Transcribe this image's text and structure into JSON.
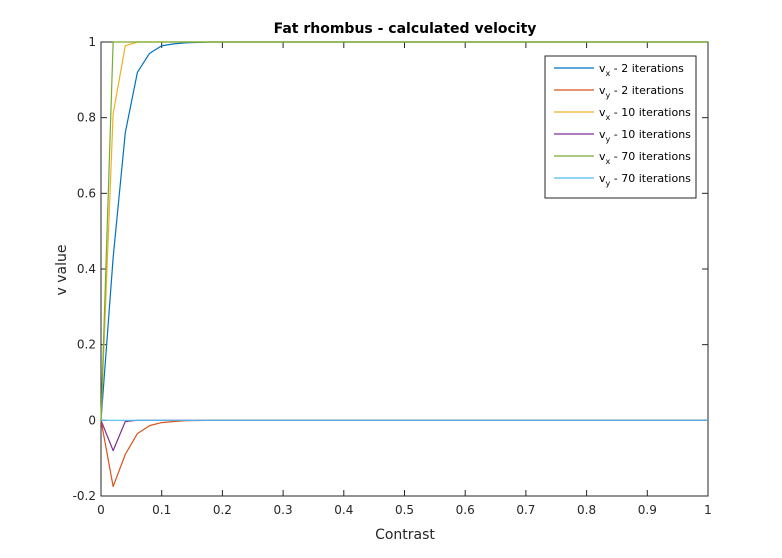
{
  "chart_data": {
    "type": "line",
    "title": "Fat rhombus - calculated velocity",
    "xlabel": "Contrast",
    "ylabel": "v value",
    "xlim": [
      0,
      1
    ],
    "ylim": [
      -0.2,
      1
    ],
    "xticks": [
      "0",
      "0.1",
      "0.2",
      "0.3",
      "0.4",
      "0.5",
      "0.6",
      "0.7",
      "0.8",
      "0.9",
      "1"
    ],
    "yticks": [
      "-0.2",
      "0",
      "0.2",
      "0.4",
      "0.6",
      "0.8",
      "1"
    ],
    "grid": false,
    "legend_position": "top-right",
    "series": [
      {
        "legend": {
          "var": "v",
          "sub": "x",
          "rest": " - 2 iterations"
        },
        "color": "#0072BD",
        "x": [
          0,
          0.02,
          0.04,
          0.06,
          0.08,
          0.1,
          0.12,
          0.14,
          0.16,
          0.18,
          0.2,
          1
        ],
        "y": [
          0,
          0.43,
          0.76,
          0.92,
          0.97,
          0.99,
          0.995,
          0.998,
          0.999,
          1,
          1,
          1
        ]
      },
      {
        "legend": {
          "var": "v",
          "sub": "y",
          "rest": " - 2 iterations"
        },
        "color": "#D95319",
        "x": [
          0,
          0.02,
          0.04,
          0.06,
          0.08,
          0.1,
          0.12,
          0.14,
          0.16,
          0.18,
          0.2,
          1
        ],
        "y": [
          0,
          -0.175,
          -0.09,
          -0.035,
          -0.014,
          -0.006,
          -0.003,
          -0.001,
          -0.0005,
          0,
          0,
          0
        ]
      },
      {
        "legend": {
          "var": "v",
          "sub": "x",
          "rest": " - 10 iterations"
        },
        "color": "#EDB120",
        "x": [
          0,
          0.02,
          0.04,
          0.06,
          0.08,
          1
        ],
        "y": [
          0,
          0.81,
          0.99,
          1,
          1,
          1
        ]
      },
      {
        "legend": {
          "var": "v",
          "sub": "y",
          "rest": " - 10 iterations"
        },
        "color": "#7E2F8E",
        "x": [
          0,
          0.02,
          0.04,
          0.06,
          1
        ],
        "y": [
          0,
          -0.08,
          -0.003,
          0,
          0
        ]
      },
      {
        "legend": {
          "var": "v",
          "sub": "x",
          "rest": " - 70 iterations"
        },
        "color": "#77AC30",
        "x": [
          0,
          0.02,
          0.04,
          1
        ],
        "y": [
          0,
          1,
          1,
          1
        ]
      },
      {
        "legend": {
          "var": "v",
          "sub": "y",
          "rest": " - 70 iterations"
        },
        "color": "#4DBEEE",
        "x": [
          0,
          0.02,
          1
        ],
        "y": [
          0,
          0,
          0
        ]
      }
    ]
  }
}
